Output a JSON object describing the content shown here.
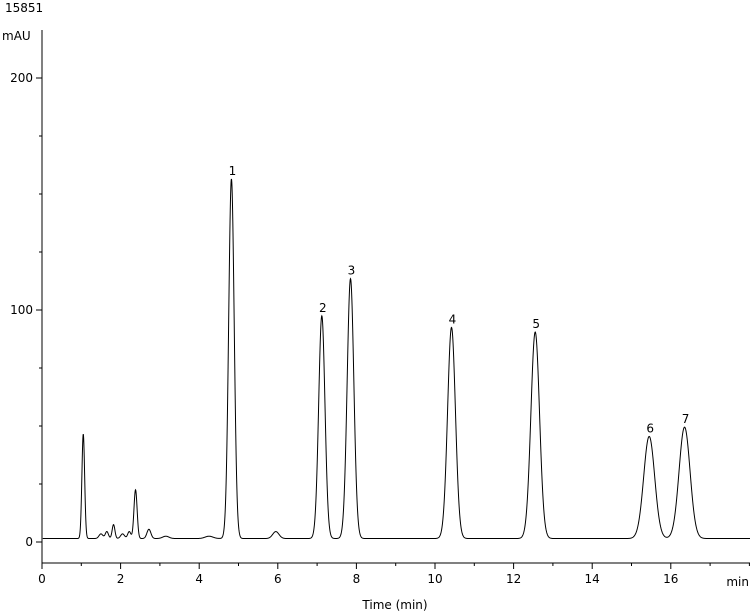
{
  "chart_data": {
    "type": "line",
    "sample_id": "15851",
    "ylabel": "mAU",
    "xunit": "min",
    "xlabel": "Time (min)",
    "xlim": [
      0,
      18
    ],
    "ylim": [
      -8,
      214
    ],
    "x_ticks": [
      0,
      2,
      4,
      6,
      8,
      10,
      12,
      14,
      16
    ],
    "x_minor_step": 1,
    "y_ticks": [
      0,
      100,
      200
    ],
    "y_minor_step": 25,
    "grid": false,
    "baseline": 1.5,
    "peaks": [
      {
        "label": "",
        "rt": 1.05,
        "height": 45,
        "width": 0.035
      },
      {
        "label": "",
        "rt": 1.5,
        "height": 2,
        "width": 0.05
      },
      {
        "label": "",
        "rt": 1.65,
        "height": 3,
        "width": 0.04
      },
      {
        "label": "",
        "rt": 1.82,
        "height": 6,
        "width": 0.035
      },
      {
        "label": "",
        "rt": 2.05,
        "height": 2,
        "width": 0.05
      },
      {
        "label": "",
        "rt": 2.22,
        "height": 3,
        "width": 0.04
      },
      {
        "label": "",
        "rt": 2.38,
        "height": 21,
        "width": 0.04
      },
      {
        "label": "",
        "rt": 2.72,
        "height": 4,
        "width": 0.05
      },
      {
        "label": "",
        "rt": 3.15,
        "height": 1,
        "width": 0.08
      },
      {
        "label": "",
        "rt": 4.25,
        "height": 1,
        "width": 0.1
      },
      {
        "label": "1",
        "rt": 4.82,
        "height": 155,
        "width": 0.07
      },
      {
        "label": "",
        "rt": 5.95,
        "height": 3,
        "width": 0.08
      },
      {
        "label": "2",
        "rt": 7.12,
        "height": 96,
        "width": 0.08
      },
      {
        "label": "3",
        "rt": 7.85,
        "height": 112,
        "width": 0.085
      },
      {
        "label": "4",
        "rt": 10.42,
        "height": 91,
        "width": 0.1
      },
      {
        "label": "5",
        "rt": 12.55,
        "height": 89,
        "width": 0.11
      },
      {
        "label": "6",
        "rt": 15.45,
        "height": 44,
        "width": 0.14
      },
      {
        "label": "7",
        "rt": 16.35,
        "height": 48,
        "width": 0.14
      }
    ]
  }
}
